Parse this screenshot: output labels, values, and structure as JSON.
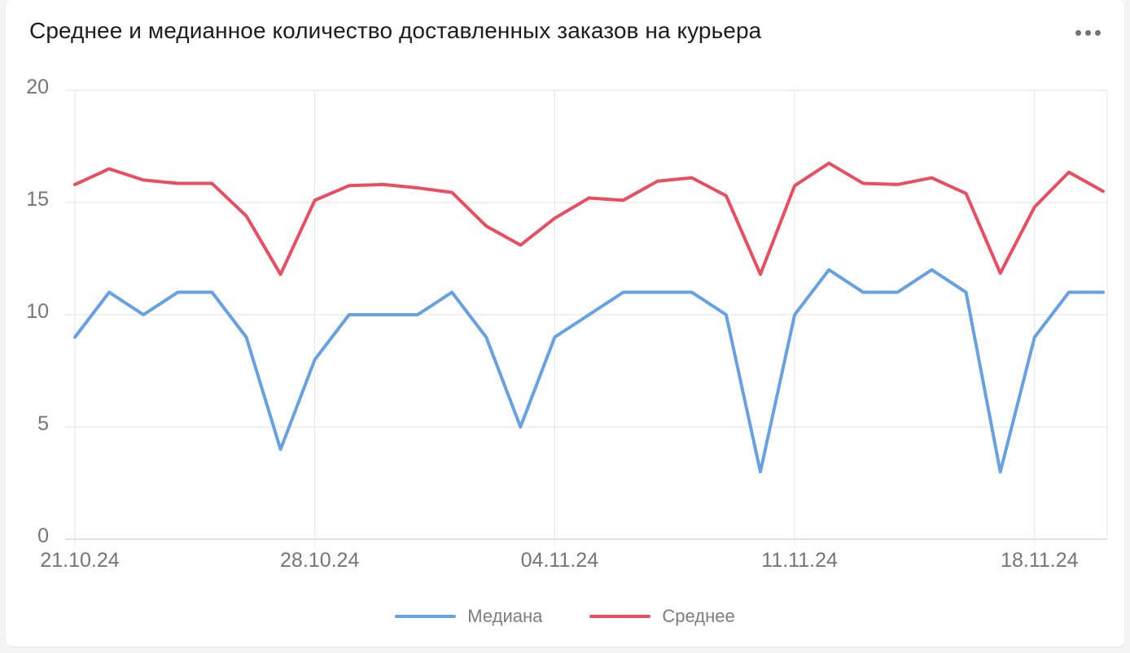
{
  "card": {
    "title": "Среднее и медианное количество доставленных заказов на курьера",
    "menu_icon": "more-horizontal-icon"
  },
  "chart_data": {
    "type": "line",
    "title": "Среднее и медианное количество доставленных заказов на курьера",
    "x": [
      "21.10.24",
      "22.10.24",
      "23.10.24",
      "24.10.24",
      "25.10.24",
      "26.10.24",
      "27.10.24",
      "28.10.24",
      "29.10.24",
      "30.10.24",
      "31.10.24",
      "01.11.24",
      "02.11.24",
      "03.11.24",
      "04.11.24",
      "05.11.24",
      "06.11.24",
      "07.11.24",
      "08.11.24",
      "09.11.24",
      "10.11.24",
      "11.11.24",
      "12.11.24",
      "13.11.24",
      "14.11.24",
      "15.11.24",
      "16.11.24",
      "17.11.24",
      "18.11.24",
      "19.11.24",
      "20.11.24"
    ],
    "x_tick_labels": [
      "21.10.24",
      "28.10.24",
      "04.11.24",
      "11.11.24",
      "18.11.24"
    ],
    "x_tick_indices": [
      0,
      7,
      14,
      21,
      28
    ],
    "series": [
      {
        "name": "Медиана",
        "color": "#66a1e3",
        "values": [
          9,
          11,
          10,
          11,
          11,
          9,
          4,
          8,
          10,
          10,
          10,
          11,
          9,
          5,
          9,
          10,
          11,
          11,
          11,
          10,
          3,
          10,
          12,
          11,
          11,
          12,
          11,
          3,
          9,
          11,
          11
        ]
      },
      {
        "name": "Среднее",
        "color": "#ea4d60",
        "values": [
          15.8,
          16.5,
          16.0,
          15.85,
          15.85,
          14.4,
          11.8,
          15.1,
          15.75,
          15.8,
          15.65,
          15.45,
          13.95,
          13.1,
          14.3,
          15.2,
          15.1,
          15.95,
          16.1,
          15.3,
          11.8,
          15.75,
          16.75,
          15.85,
          15.8,
          16.1,
          15.4,
          11.85,
          14.8,
          16.35,
          15.5
        ]
      }
    ],
    "xlabel": "",
    "ylabel": "",
    "ylim": [
      0,
      20
    ],
    "y_ticks": [
      0,
      5,
      10,
      15,
      20
    ],
    "grid": "on",
    "legend_position": "bottom",
    "colors": {
      "gridline": "#e8e8e8",
      "axis_line": "#d9d9d9",
      "tick_label": "#757575",
      "title_text": "#1d1d1f",
      "legend_text": "#7d7d7d",
      "menu_dots": "#737373"
    }
  }
}
